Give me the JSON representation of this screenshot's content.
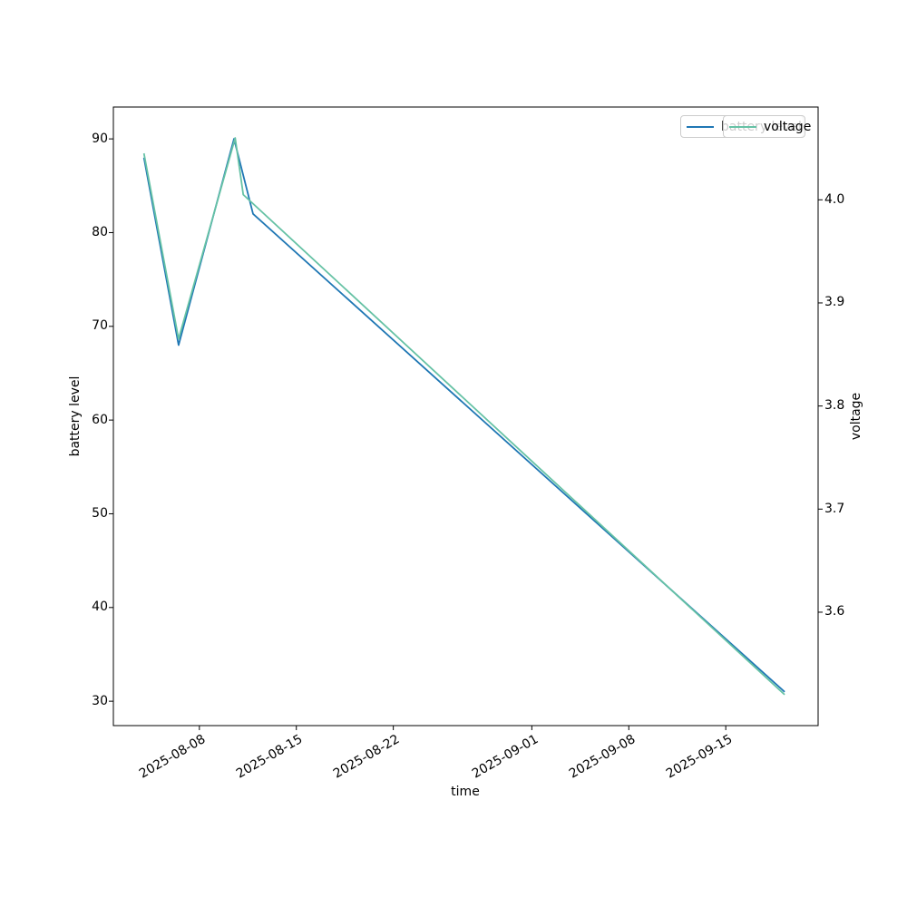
{
  "figure": {
    "background_color": "#ffffff",
    "spine_color": "#000000"
  },
  "chart_data": {
    "type": "line",
    "title": "",
    "xlabel": "time",
    "ylabel_left": "battery level",
    "ylabel_right": "voltage",
    "grid": false,
    "xlim": [
      "2025-08-01T19:00",
      "2025-09-21T16:00"
    ],
    "ylim_left": [
      27.4,
      93.4
    ],
    "ylim_right": [
      3.49,
      4.09
    ],
    "series": [
      {
        "name": "battery level",
        "yaxis": "left",
        "color": "#1f77b4",
        "x": [
          "2025-08-04",
          "2025-08-06T12:00",
          "2025-08-10T12:00",
          "2025-08-11T21:00",
          "2025-09-19T06:00"
        ],
        "values": [
          88,
          68,
          90,
          82,
          31
        ]
      },
      {
        "name": "voltage",
        "yaxis": "right",
        "color": "#66c2a5",
        "x": [
          "2025-08-04",
          "2025-08-06T12:00",
          "2025-08-10T14:00",
          "2025-08-11T04:00",
          "2025-09-19T06:00"
        ],
        "values": [
          4.045,
          3.865,
          4.06,
          4.005,
          3.52
        ]
      }
    ],
    "x_ticks": [
      {
        "value": "2025-08-08",
        "label": "2025-08-08"
      },
      {
        "value": "2025-08-15",
        "label": "2025-08-15"
      },
      {
        "value": "2025-08-22",
        "label": "2025-08-22"
      },
      {
        "value": "2025-09-01",
        "label": "2025-09-01"
      },
      {
        "value": "2025-09-08",
        "label": "2025-09-08"
      },
      {
        "value": "2025-09-15",
        "label": "2025-09-15"
      }
    ],
    "y_ticks_left": [
      {
        "value": 90,
        "label": "90"
      },
      {
        "value": 80,
        "label": "80"
      },
      {
        "value": 70,
        "label": "70"
      },
      {
        "value": 60,
        "label": "60"
      },
      {
        "value": 50,
        "label": "50"
      },
      {
        "value": 40,
        "label": "40"
      },
      {
        "value": 30,
        "label": "30"
      }
    ],
    "y_ticks_right": [
      {
        "value": 4.0,
        "label": "4.0"
      },
      {
        "value": 3.9,
        "label": "3.9"
      },
      {
        "value": 3.8,
        "label": "3.8"
      },
      {
        "value": 3.7,
        "label": "3.7"
      },
      {
        "value": 3.6,
        "label": "3.6"
      }
    ],
    "legend": {
      "position": "upper right",
      "frame_alpha": 0.8,
      "entries": [
        {
          "label": "battery level",
          "color": "#1f77b4"
        },
        {
          "label": "voltage",
          "color": "#66c2a5"
        }
      ]
    }
  }
}
